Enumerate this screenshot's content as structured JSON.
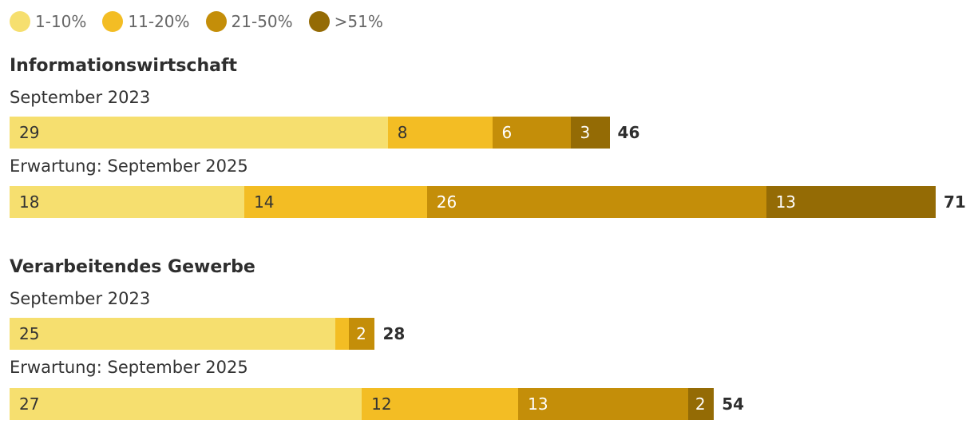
{
  "chart_data": {
    "type": "bar",
    "orientation": "horizontal",
    "stacked": true,
    "legend": {
      "position": "top-left",
      "entries": [
        {
          "label": "1-10%",
          "color": "#f6df6f"
        },
        {
          "label": "11-20%",
          "color": "#f3bd24"
        },
        {
          "label": "21-50%",
          "color": "#c48e09"
        },
        {
          "label": ">51%",
          "color": "#946b05"
        }
      ]
    },
    "groups": [
      {
        "title": "Informationswirtschaft",
        "rows": [
          {
            "label": "September 2023",
            "values": [
              29,
              8,
              6,
              3
            ],
            "total": 46,
            "segment_labels": [
              "29",
              "8",
              "6",
              "3"
            ]
          },
          {
            "label": "Erwartung: September 2025",
            "values": [
              18,
              14,
              26,
              13
            ],
            "total": 71,
            "segment_labels": [
              "18",
              "14",
              "26",
              "13"
            ]
          }
        ]
      },
      {
        "title": "Verarbeitendes Gewerbe",
        "rows": [
          {
            "label": "September 2023",
            "values": [
              25,
              1,
              2,
              0
            ],
            "total": 28,
            "segment_labels": [
              "25",
              "",
              "2",
              ""
            ]
          },
          {
            "label": "Erwartung: September 2025",
            "values": [
              27,
              12,
              13,
              2
            ],
            "total": 54,
            "segment_labels": [
              "27",
              "12",
              "13",
              "2"
            ]
          }
        ]
      }
    ],
    "xlim": [
      0,
      71
    ]
  }
}
